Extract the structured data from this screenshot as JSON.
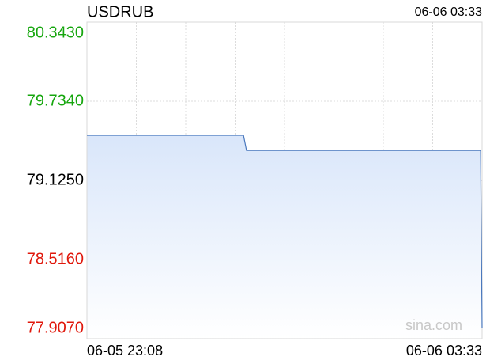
{
  "chart_data": {
    "type": "line",
    "title": "USDRUB",
    "x": [
      "06-05 23:08",
      "06-06 00:53",
      "06-06 00:55",
      "06-06 03:32",
      "06-06 03:33"
    ],
    "series": [
      {
        "name": "USDRUB",
        "color": "#4a78bd",
        "values": [
          79.472,
          79.472,
          79.356,
          79.356,
          77.986
        ]
      }
    ],
    "ylim": [
      77.907,
      80.343
    ],
    "yticks": [
      {
        "value": 77.907,
        "label": "77.9070"
      },
      {
        "value": 78.516,
        "label": "78.5160"
      },
      {
        "value": 79.125,
        "label": "79.1250"
      },
      {
        "value": 79.734,
        "label": "79.7340"
      },
      {
        "value": 80.343,
        "label": "80.3430"
      }
    ],
    "ytick_colors": [
      "#e0180c",
      "#e0180c",
      "#000000",
      "#16a60e",
      "#16a60e"
    ],
    "watermark": "sina.com",
    "grid": true
  }
}
